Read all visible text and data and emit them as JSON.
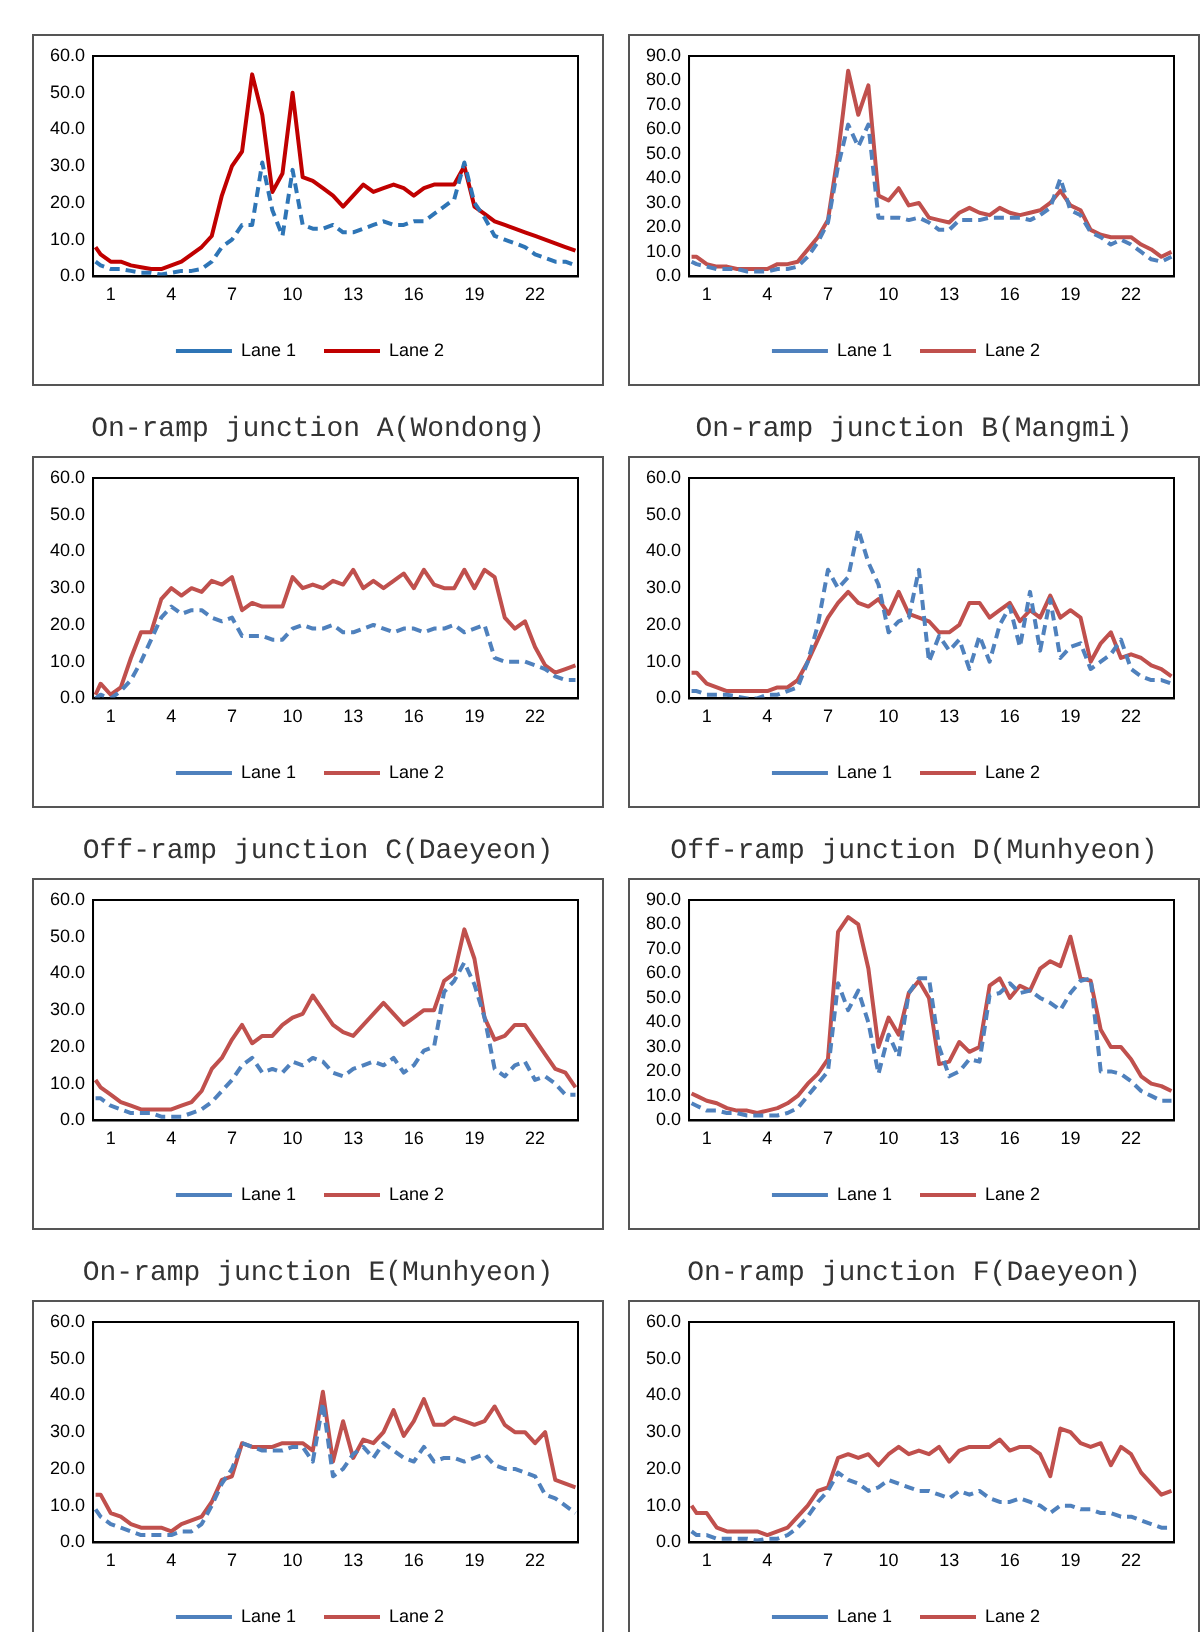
{
  "chart_data": [
    {
      "type": "line",
      "title": "On-ramp junction A(Wondong)",
      "x": [
        0.25,
        0.5,
        1,
        1.5,
        2,
        2.5,
        3,
        3.5,
        4,
        4.5,
        5,
        5.5,
        6,
        6.5,
        7,
        7.5,
        8,
        8.5,
        9,
        9.5,
        10,
        10.5,
        11,
        11.5,
        12,
        12.5,
        13,
        13.5,
        14,
        14.5,
        15,
        15.5,
        16,
        16.5,
        17,
        17.5,
        18,
        18.5,
        19,
        19.5,
        20,
        20.5,
        21,
        21.5,
        22,
        22.5,
        23,
        23.5,
        24
      ],
      "xlim": [
        0.125,
        24.125
      ],
      "xticks": [
        1,
        4,
        7,
        10,
        13,
        16,
        19,
        22
      ],
      "ylim": [
        0,
        60
      ],
      "yticks": [
        {
          "value": 0,
          "label": "0.0"
        },
        {
          "value": 10,
          "label": "10.0"
        },
        {
          "value": 20,
          "label": "20.0"
        },
        {
          "value": 30,
          "label": "30.0"
        },
        {
          "value": 40,
          "label": "40.0"
        },
        {
          "value": 50,
          "label": "50.0"
        },
        {
          "value": 60,
          "label": "60.0"
        }
      ],
      "legend": "bottom",
      "marker": "none",
      "series": [
        {
          "name": "Lane 1",
          "color": "#2e75b6",
          "line_style": "dashed",
          "values": [
            4,
            3,
            2,
            2,
            1.5,
            1,
            1,
            0.5,
            1,
            1.5,
            1.5,
            2,
            4,
            8,
            10,
            14,
            14,
            31,
            18,
            11,
            29,
            14,
            13,
            13,
            14,
            12,
            12,
            13,
            14,
            15,
            14,
            14,
            15,
            15,
            17,
            19,
            21,
            31,
            20,
            16,
            11,
            10,
            9,
            8,
            6,
            5,
            4,
            4,
            3
          ]
        },
        {
          "name": "Lane 2",
          "color": "#c00000",
          "line_style": "solid",
          "values": [
            8,
            6,
            4,
            4,
            3,
            2.5,
            2,
            2,
            3,
            4,
            6,
            8,
            11,
            22,
            30,
            34,
            55,
            44,
            23,
            28,
            50,
            27,
            26,
            24,
            22,
            19,
            22,
            25,
            23,
            24,
            25,
            24,
            22,
            24,
            25,
            25,
            25,
            30,
            19,
            17,
            15,
            14,
            13,
            12,
            11,
            10,
            9,
            8,
            7
          ]
        }
      ]
    },
    {
      "type": "line",
      "title": "On-ramp junction B(Mangmi)",
      "x": [
        0.25,
        0.5,
        1,
        1.5,
        2,
        2.5,
        3,
        3.5,
        4,
        4.5,
        5,
        5.5,
        6,
        6.5,
        7,
        7.5,
        8,
        8.5,
        9,
        9.5,
        10,
        10.5,
        11,
        11.5,
        12,
        12.5,
        13,
        13.5,
        14,
        14.5,
        15,
        15.5,
        16,
        16.5,
        17,
        17.5,
        18,
        18.5,
        19,
        19.5,
        20,
        20.5,
        21,
        21.5,
        22,
        22.5,
        23,
        23.5,
        24
      ],
      "xlim": [
        0.125,
        24.125
      ],
      "xticks": [
        1,
        4,
        7,
        10,
        13,
        16,
        19,
        22
      ],
      "ylim": [
        0,
        90
      ],
      "yticks": [
        {
          "value": 0,
          "label": "0.0"
        },
        {
          "value": 10,
          "label": "10.0"
        },
        {
          "value": 20,
          "label": "20.0"
        },
        {
          "value": 30,
          "label": "30.0"
        },
        {
          "value": 40,
          "label": "40.0"
        },
        {
          "value": 50,
          "label": "50.0"
        },
        {
          "value": 60,
          "label": "60.0"
        },
        {
          "value": 70,
          "label": "70.0"
        },
        {
          "value": 80,
          "label": "80.0"
        },
        {
          "value": 90,
          "label": "90.0"
        }
      ],
      "legend": "bottom",
      "marker": "none",
      "series": [
        {
          "name": "Lane 1",
          "color": "#4f81bd",
          "line_style": "dashed",
          "values": [
            6,
            5,
            4,
            3,
            3,
            3,
            2,
            2,
            2,
            3,
            3,
            4,
            8,
            14,
            22,
            45,
            62,
            53,
            62,
            24,
            24,
            24,
            23,
            24,
            22,
            19,
            19,
            23,
            23,
            23,
            24,
            24,
            24,
            24,
            23,
            25,
            28,
            40,
            27,
            25,
            18,
            16,
            13,
            15,
            13,
            10,
            7,
            6,
            8
          ]
        },
        {
          "name": "Lane 2",
          "color": "#c0504d",
          "line_style": "solid",
          "values": [
            8,
            8,
            5,
            4,
            4,
            3,
            3,
            3,
            3,
            5,
            5,
            6,
            11,
            16,
            23,
            50,
            84,
            66,
            78,
            33,
            31,
            36,
            29,
            30,
            24,
            23,
            22,
            26,
            28,
            26,
            25,
            28,
            26,
            25,
            26,
            27,
            30,
            35,
            29,
            27,
            19,
            17,
            16,
            16,
            16,
            13,
            11,
            8,
            10
          ]
        }
      ]
    },
    {
      "type": "line",
      "title": "Off-ramp junction C(Daeyeon)",
      "x": [
        0.25,
        0.5,
        1,
        1.5,
        2,
        2.5,
        3,
        3.5,
        4,
        4.5,
        5,
        5.5,
        6,
        6.5,
        7,
        7.5,
        8,
        8.5,
        9,
        9.5,
        10,
        10.5,
        11,
        11.5,
        12,
        12.5,
        13,
        13.5,
        14,
        14.5,
        15,
        15.5,
        16,
        16.5,
        17,
        17.5,
        18,
        18.5,
        19,
        19.5,
        20,
        20.5,
        21,
        21.5,
        22,
        22.5,
        23,
        23.5,
        24
      ],
      "xlim": [
        0.125,
        24.125
      ],
      "xticks": [
        1,
        4,
        7,
        10,
        13,
        16,
        19,
        22
      ],
      "ylim": [
        0,
        60
      ],
      "yticks": [
        {
          "value": 0,
          "label": "0.0"
        },
        {
          "value": 10,
          "label": "10.0"
        },
        {
          "value": 20,
          "label": "20.0"
        },
        {
          "value": 30,
          "label": "30.0"
        },
        {
          "value": 40,
          "label": "40.0"
        },
        {
          "value": 50,
          "label": "50.0"
        },
        {
          "value": 60,
          "label": "60.0"
        }
      ],
      "legend": "bottom",
      "marker": "none",
      "series": [
        {
          "name": "Lane 1",
          "color": "#4f81bd",
          "line_style": "dashed",
          "values": [
            0,
            1,
            0,
            2,
            5,
            10,
            16,
            22,
            25,
            23,
            24,
            24,
            22,
            21,
            22,
            17,
            17,
            17,
            16,
            16,
            19,
            20,
            19,
            19,
            20,
            18,
            18,
            19,
            20,
            19,
            18,
            19,
            19,
            18,
            19,
            19,
            20,
            18,
            19,
            20,
            11,
            10,
            10,
            10,
            9,
            8,
            6,
            5,
            5
          ]
        },
        {
          "name": "Lane 2",
          "color": "#c0504d",
          "line_style": "solid",
          "values": [
            1,
            4,
            1,
            3,
            11,
            18,
            18,
            27,
            30,
            28,
            30,
            29,
            32,
            31,
            33,
            24,
            26,
            25,
            25,
            25,
            33,
            30,
            31,
            30,
            32,
            31,
            35,
            30,
            32,
            30,
            32,
            34,
            30,
            35,
            31,
            30,
            30,
            35,
            30,
            35,
            33,
            22,
            19,
            21,
            14,
            9,
            7,
            8,
            9
          ]
        }
      ]
    },
    {
      "type": "line",
      "title": "Off-ramp junction D(Munhyeon)",
      "x": [
        0.25,
        0.5,
        1,
        1.5,
        2,
        2.5,
        3,
        3.5,
        4,
        4.5,
        5,
        5.5,
        6,
        6.5,
        7,
        7.5,
        8,
        8.5,
        9,
        9.5,
        10,
        10.5,
        11,
        11.5,
        12,
        12.5,
        13,
        13.5,
        14,
        14.5,
        15,
        15.5,
        16,
        16.5,
        17,
        17.5,
        18,
        18.5,
        19,
        19.5,
        20,
        20.5,
        21,
        21.5,
        22,
        22.5,
        23,
        23.5,
        24
      ],
      "xlim": [
        0.125,
        24.125
      ],
      "xticks": [
        1,
        4,
        7,
        10,
        13,
        16,
        19,
        22
      ],
      "ylim": [
        0,
        60
      ],
      "yticks": [
        {
          "value": 0,
          "label": "0.0"
        },
        {
          "value": 10,
          "label": "10.0"
        },
        {
          "value": 20,
          "label": "20.0"
        },
        {
          "value": 30,
          "label": "30.0"
        },
        {
          "value": 40,
          "label": "40.0"
        },
        {
          "value": 50,
          "label": "50.0"
        },
        {
          "value": 60,
          "label": "60.0"
        }
      ],
      "legend": "bottom",
      "marker": "none",
      "series": [
        {
          "name": "Lane 1",
          "color": "#4f81bd",
          "line_style": "dashed",
          "values": [
            2,
            2,
            1,
            1,
            1,
            0.5,
            0,
            0,
            1,
            1,
            2,
            3,
            10,
            20,
            35,
            30,
            33,
            46,
            37,
            31,
            18,
            21,
            22,
            35,
            10,
            17,
            13,
            16,
            8,
            17,
            10,
            20,
            25,
            14,
            29,
            13,
            27,
            11,
            14,
            15,
            8,
            10,
            12,
            16,
            8,
            6,
            5,
            5,
            4
          ]
        },
        {
          "name": "Lane 2",
          "color": "#c0504d",
          "line_style": "solid",
          "values": [
            7,
            7,
            4,
            3,
            2,
            2,
            2,
            2,
            2,
            3,
            3,
            5,
            10,
            16,
            22,
            26,
            29,
            26,
            25,
            27,
            23,
            29,
            23,
            22,
            21,
            18,
            18,
            20,
            26,
            26,
            22,
            24,
            26,
            21,
            24,
            22,
            28,
            22,
            24,
            22,
            10,
            15,
            18,
            11,
            12,
            11,
            9,
            8,
            6
          ]
        }
      ]
    },
    {
      "type": "line",
      "title": "On-ramp junction E(Munhyeon)",
      "x": [
        0.25,
        0.5,
        1,
        1.5,
        2,
        2.5,
        3,
        3.5,
        4,
        4.5,
        5,
        5.5,
        6,
        6.5,
        7,
        7.5,
        8,
        8.5,
        9,
        9.5,
        10,
        10.5,
        11,
        11.5,
        12,
        12.5,
        13,
        13.5,
        14,
        14.5,
        15,
        15.5,
        16,
        16.5,
        17,
        17.5,
        18,
        18.5,
        19,
        19.5,
        20,
        20.5,
        21,
        21.5,
        22,
        22.5,
        23,
        23.5,
        24
      ],
      "xlim": [
        0.125,
        24.125
      ],
      "xticks": [
        1,
        4,
        7,
        10,
        13,
        16,
        19,
        22
      ],
      "ylim": [
        0,
        60
      ],
      "yticks": [
        {
          "value": 0,
          "label": "0.0"
        },
        {
          "value": 10,
          "label": "10.0"
        },
        {
          "value": 20,
          "label": "20.0"
        },
        {
          "value": 30,
          "label": "30.0"
        },
        {
          "value": 40,
          "label": "40.0"
        },
        {
          "value": 50,
          "label": "50.0"
        },
        {
          "value": 60,
          "label": "60.0"
        }
      ],
      "legend": "bottom",
      "marker": "none",
      "series": [
        {
          "name": "Lane 1",
          "color": "#4f81bd",
          "line_style": "dashed",
          "values": [
            6,
            6,
            4,
            3,
            2,
            2,
            2,
            1,
            1,
            1,
            2,
            3,
            5,
            8,
            11,
            15,
            17,
            13,
            14,
            13,
            16,
            15,
            17,
            16,
            13,
            12,
            14,
            15,
            16,
            15,
            17,
            13,
            15,
            19,
            20,
            35,
            38,
            43,
            37,
            28,
            14,
            12,
            15,
            16,
            11,
            12,
            10,
            7,
            7
          ]
        },
        {
          "name": "Lane 2",
          "color": "#c0504d",
          "line_style": "solid",
          "values": [
            11,
            9,
            7,
            5,
            4,
            3,
            3,
            3,
            3,
            4,
            5,
            8,
            14,
            17,
            22,
            26,
            21,
            23,
            23,
            26,
            28,
            29,
            34,
            30,
            26,
            24,
            23,
            26,
            29,
            32,
            29,
            26,
            28,
            30,
            30,
            38,
            40,
            52,
            44,
            28,
            22,
            23,
            26,
            26,
            22,
            18,
            14,
            13,
            9
          ]
        }
      ]
    },
    {
      "type": "line",
      "title": "On-ramp junction F(Daeyeon)",
      "x": [
        0.25,
        0.5,
        1,
        1.5,
        2,
        2.5,
        3,
        3.5,
        4,
        4.5,
        5,
        5.5,
        6,
        6.5,
        7,
        7.5,
        8,
        8.5,
        9,
        9.5,
        10,
        10.5,
        11,
        11.5,
        12,
        12.5,
        13,
        13.5,
        14,
        14.5,
        15,
        15.5,
        16,
        16.5,
        17,
        17.5,
        18,
        18.5,
        19,
        19.5,
        20,
        20.5,
        21,
        21.5,
        22,
        22.5,
        23,
        23.5,
        24
      ],
      "xlim": [
        0.125,
        24.125
      ],
      "xticks": [
        1,
        4,
        7,
        10,
        13,
        16,
        19,
        22
      ],
      "ylim": [
        0,
        90
      ],
      "yticks": [
        {
          "value": 0,
          "label": "0.0"
        },
        {
          "value": 10,
          "label": "10.0"
        },
        {
          "value": 20,
          "label": "20.0"
        },
        {
          "value": 30,
          "label": "30.0"
        },
        {
          "value": 40,
          "label": "40.0"
        },
        {
          "value": 50,
          "label": "50.0"
        },
        {
          "value": 60,
          "label": "60.0"
        },
        {
          "value": 70,
          "label": "70.0"
        },
        {
          "value": 80,
          "label": "80.0"
        },
        {
          "value": 90,
          "label": "90.0"
        }
      ],
      "legend": "bottom",
      "marker": "none",
      "series": [
        {
          "name": "Lane 1",
          "color": "#4f81bd",
          "line_style": "dashed",
          "values": [
            7,
            6,
            4,
            4,
            3,
            3,
            2,
            2,
            2,
            2,
            3,
            5,
            10,
            15,
            20,
            56,
            45,
            53,
            40,
            19,
            35,
            26,
            52,
            58,
            58,
            30,
            18,
            20,
            25,
            24,
            51,
            52,
            56,
            52,
            53,
            50,
            48,
            45,
            52,
            57,
            58,
            20,
            20,
            19,
            16,
            12,
            10,
            8,
            8
          ]
        },
        {
          "name": "Lane 2",
          "color": "#c0504d",
          "line_style": "solid",
          "values": [
            11,
            10,
            8,
            7,
            5,
            4,
            4,
            3,
            4,
            5,
            7,
            10,
            15,
            19,
            25,
            77,
            83,
            80,
            62,
            30,
            42,
            35,
            52,
            57,
            50,
            23,
            24,
            32,
            28,
            30,
            55,
            58,
            50,
            55,
            53,
            62,
            65,
            63,
            75,
            58,
            57,
            37,
            30,
            30,
            25,
            18,
            15,
            14,
            12
          ]
        }
      ]
    },
    {
      "type": "line",
      "x": [
        0.25,
        0.5,
        1,
        1.5,
        2,
        2.5,
        3,
        3.5,
        4,
        4.5,
        5,
        5.5,
        6,
        6.5,
        7,
        7.5,
        8,
        8.5,
        9,
        9.5,
        10,
        10.5,
        11,
        11.5,
        12,
        12.5,
        13,
        13.5,
        14,
        14.5,
        15,
        15.5,
        16,
        16.5,
        17,
        17.5,
        18,
        18.5,
        19,
        19.5,
        20,
        20.5,
        21,
        21.5,
        22,
        22.5,
        23,
        23.5,
        24
      ],
      "xlim": [
        0.125,
        24.125
      ],
      "xticks": [
        1,
        4,
        7,
        10,
        13,
        16,
        19,
        22
      ],
      "ylim": [
        0,
        60
      ],
      "yticks": [
        {
          "value": 0,
          "label": "0.0"
        },
        {
          "value": 10,
          "label": "10.0"
        },
        {
          "value": 20,
          "label": "20.0"
        },
        {
          "value": 30,
          "label": "30.0"
        },
        {
          "value": 40,
          "label": "40.0"
        },
        {
          "value": 50,
          "label": "50.0"
        },
        {
          "value": 60,
          "label": "60.0"
        }
      ],
      "legend": "bottom",
      "marker": "none",
      "series": [
        {
          "name": "Lane 1",
          "color": "#4f81bd",
          "line_style": "dashed",
          "values": [
            9,
            7,
            5,
            4,
            3,
            2,
            2,
            2,
            2,
            3,
            3,
            5,
            10,
            16,
            20,
            27,
            26,
            25,
            25,
            25,
            26,
            26,
            22,
            38,
            18,
            20,
            24,
            26,
            23,
            27,
            25,
            23,
            22,
            26,
            22,
            23,
            23,
            22,
            23,
            24,
            21,
            20,
            20,
            19,
            18,
            13,
            12,
            10,
            8
          ]
        },
        {
          "name": "Lane 2",
          "color": "#c0504d",
          "line_style": "solid",
          "values": [
            13,
            13,
            8,
            7,
            5,
            4,
            4,
            4,
            3,
            5,
            6,
            7,
            11,
            17,
            18,
            27,
            26,
            26,
            26,
            27,
            27,
            27,
            25,
            41,
            22,
            33,
            23,
            28,
            27,
            30,
            36,
            29,
            33,
            39,
            32,
            32,
            34,
            33,
            32,
            33,
            37,
            32,
            30,
            30,
            27,
            30,
            17,
            16,
            15
          ]
        }
      ]
    },
    {
      "type": "line",
      "x": [
        0.25,
        0.5,
        1,
        1.5,
        2,
        2.5,
        3,
        3.5,
        4,
        4.5,
        5,
        5.5,
        6,
        6.5,
        7,
        7.5,
        8,
        8.5,
        9,
        9.5,
        10,
        10.5,
        11,
        11.5,
        12,
        12.5,
        13,
        13.5,
        14,
        14.5,
        15,
        15.5,
        16,
        16.5,
        17,
        17.5,
        18,
        18.5,
        19,
        19.5,
        20,
        20.5,
        21,
        21.5,
        22,
        22.5,
        23,
        23.5,
        24
      ],
      "xlim": [
        0.125,
        24.125
      ],
      "xticks": [
        1,
        4,
        7,
        10,
        13,
        16,
        19,
        22
      ],
      "ylim": [
        0,
        60
      ],
      "yticks": [
        {
          "value": 0,
          "label": "0.0"
        },
        {
          "value": 10,
          "label": "10.0"
        },
        {
          "value": 20,
          "label": "20.0"
        },
        {
          "value": 30,
          "label": "30.0"
        },
        {
          "value": 40,
          "label": "40.0"
        },
        {
          "value": 50,
          "label": "50.0"
        },
        {
          "value": 60,
          "label": "60.0"
        }
      ],
      "legend": "bottom",
      "marker": "none",
      "series": [
        {
          "name": "Lane 1",
          "color": "#4f81bd",
          "line_style": "dashed",
          "values": [
            3,
            2,
            2,
            1,
            1,
            1,
            1,
            0.5,
            1,
            1,
            2,
            4,
            7,
            11,
            14,
            19,
            17,
            16,
            14,
            15,
            17,
            16,
            15,
            14,
            14,
            13,
            12,
            14,
            13,
            14,
            12,
            11,
            11,
            12,
            11,
            10,
            8,
            10,
            10,
            9,
            9,
            8,
            8,
            7,
            7,
            6,
            5,
            4,
            4
          ]
        },
        {
          "name": "Lane 2",
          "color": "#c0504d",
          "line_style": "solid",
          "values": [
            10,
            8,
            8,
            4,
            3,
            3,
            3,
            3,
            2,
            3,
            4,
            7,
            10,
            14,
            15,
            23,
            24,
            23,
            24,
            21,
            24,
            26,
            24,
            25,
            24,
            26,
            22,
            25,
            26,
            26,
            26,
            28,
            25,
            26,
            26,
            24,
            18,
            31,
            30,
            27,
            26,
            27,
            21,
            26,
            24,
            19,
            16,
            13,
            14
          ]
        }
      ]
    }
  ]
}
